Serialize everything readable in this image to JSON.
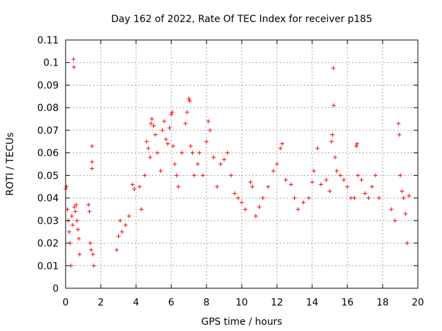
{
  "chart_data": {
    "type": "scatter",
    "title": "Day 162 of 2022, Rate Of TEC Index for receiver p185",
    "xlabel": "GPS time / hours",
    "ylabel": "ROTI / TECUs",
    "xlim": [
      0,
      20
    ],
    "ylim": [
      0,
      0.11
    ],
    "xticks": [
      "0",
      "2",
      "4",
      "6",
      "8",
      "10",
      "12",
      "14",
      "16",
      "18",
      "20"
    ],
    "yticks": [
      "0",
      "0.01",
      "0.02",
      "0.03",
      "0.04",
      "0.05",
      "0.06",
      "0.07",
      "0.08",
      "0.09",
      "0.1",
      "0.11"
    ],
    "grid": true,
    "marker": "+",
    "color": "#ff0000",
    "series": [
      {
        "points": [
          [
            0.0,
            0.044
          ],
          [
            0.05,
            0.045
          ],
          [
            0.1,
            0.035
          ],
          [
            0.15,
            0.03
          ],
          [
            0.2,
            0.025
          ],
          [
            0.25,
            0.02
          ],
          [
            0.3,
            0.01
          ],
          [
            0.35,
            0.032
          ],
          [
            0.4,
            0.028
          ],
          [
            0.45,
            0.1015
          ],
          [
            0.47,
            0.098
          ],
          [
            0.5,
            0.036
          ],
          [
            0.55,
            0.034
          ],
          [
            0.6,
            0.037
          ],
          [
            0.65,
            0.03
          ],
          [
            0.7,
            0.026
          ],
          [
            0.75,
            0.022
          ],
          [
            0.8,
            0.015
          ],
          [
            1.3,
            0.037
          ],
          [
            1.35,
            0.034
          ],
          [
            1.4,
            0.02
          ],
          [
            1.45,
            0.017
          ],
          [
            1.5,
            0.063
          ],
          [
            1.5,
            0.056
          ],
          [
            1.5,
            0.053
          ],
          [
            1.55,
            0.015
          ],
          [
            1.6,
            0.01
          ],
          [
            2.9,
            0.017
          ],
          [
            3.0,
            0.023
          ],
          [
            3.1,
            0.03
          ],
          [
            3.2,
            0.025
          ],
          [
            3.4,
            0.028
          ],
          [
            3.6,
            0.032
          ],
          [
            3.8,
            0.046
          ],
          [
            3.9,
            0.044
          ],
          [
            4.2,
            0.045
          ],
          [
            4.3,
            0.035
          ],
          [
            4.5,
            0.05
          ],
          [
            4.6,
            0.065
          ],
          [
            4.7,
            0.062
          ],
          [
            4.8,
            0.058
          ],
          [
            4.85,
            0.073
          ],
          [
            4.9,
            0.075
          ],
          [
            5.0,
            0.072
          ],
          [
            5.1,
            0.068
          ],
          [
            5.2,
            0.06
          ],
          [
            5.4,
            0.052
          ],
          [
            5.5,
            0.07
          ],
          [
            5.6,
            0.074
          ],
          [
            5.7,
            0.066
          ],
          [
            5.8,
            0.064
          ],
          [
            5.9,
            0.071
          ],
          [
            6.0,
            0.077
          ],
          [
            6.05,
            0.078
          ],
          [
            6.1,
            0.063
          ],
          [
            6.2,
            0.055
          ],
          [
            6.3,
            0.05
          ],
          [
            6.4,
            0.045
          ],
          [
            6.6,
            0.06
          ],
          [
            6.8,
            0.073
          ],
          [
            6.9,
            0.078
          ],
          [
            7.0,
            0.084
          ],
          [
            7.05,
            0.083
          ],
          [
            7.1,
            0.063
          ],
          [
            7.2,
            0.06
          ],
          [
            7.3,
            0.05
          ],
          [
            7.5,
            0.055
          ],
          [
            7.6,
            0.06
          ],
          [
            7.8,
            0.05
          ],
          [
            8.0,
            0.065
          ],
          [
            8.1,
            0.074
          ],
          [
            8.2,
            0.07
          ],
          [
            8.4,
            0.058
          ],
          [
            8.6,
            0.045
          ],
          [
            8.8,
            0.055
          ],
          [
            9.0,
            0.057
          ],
          [
            9.2,
            0.06
          ],
          [
            9.4,
            0.05
          ],
          [
            9.6,
            0.042
          ],
          [
            9.8,
            0.04
          ],
          [
            10.0,
            0.038
          ],
          [
            10.2,
            0.035
          ],
          [
            10.5,
            0.047
          ],
          [
            10.6,
            0.045
          ],
          [
            10.8,
            0.032
          ],
          [
            11.0,
            0.036
          ],
          [
            11.2,
            0.04
          ],
          [
            11.5,
            0.045
          ],
          [
            11.8,
            0.052
          ],
          [
            12.0,
            0.055
          ],
          [
            12.2,
            0.062
          ],
          [
            12.3,
            0.064
          ],
          [
            12.5,
            0.048
          ],
          [
            12.8,
            0.046
          ],
          [
            13.0,
            0.04
          ],
          [
            13.2,
            0.035
          ],
          [
            13.5,
            0.038
          ],
          [
            13.8,
            0.04
          ],
          [
            14.0,
            0.047
          ],
          [
            14.1,
            0.052
          ],
          [
            14.3,
            0.062
          ],
          [
            14.5,
            0.046
          ],
          [
            14.8,
            0.048
          ],
          [
            15.0,
            0.043
          ],
          [
            15.1,
            0.065
          ],
          [
            15.15,
            0.068
          ],
          [
            15.2,
            0.0975
          ],
          [
            15.22,
            0.081
          ],
          [
            15.3,
            0.058
          ],
          [
            15.4,
            0.052
          ],
          [
            15.6,
            0.05
          ],
          [
            15.8,
            0.048
          ],
          [
            16.0,
            0.045
          ],
          [
            16.2,
            0.04
          ],
          [
            16.4,
            0.04
          ],
          [
            16.5,
            0.063
          ],
          [
            16.55,
            0.064
          ],
          [
            16.6,
            0.05
          ],
          [
            16.8,
            0.048
          ],
          [
            17.0,
            0.042
          ],
          [
            17.2,
            0.04
          ],
          [
            17.4,
            0.045
          ],
          [
            17.6,
            0.05
          ],
          [
            17.8,
            0.04
          ],
          [
            18.5,
            0.035
          ],
          [
            18.7,
            0.03
          ],
          [
            18.9,
            0.073
          ],
          [
            18.95,
            0.068
          ],
          [
            19.0,
            0.05
          ],
          [
            19.1,
            0.043
          ],
          [
            19.2,
            0.04
          ],
          [
            19.3,
            0.033
          ],
          [
            19.4,
            0.02
          ],
          [
            19.5,
            0.041
          ]
        ]
      }
    ]
  }
}
